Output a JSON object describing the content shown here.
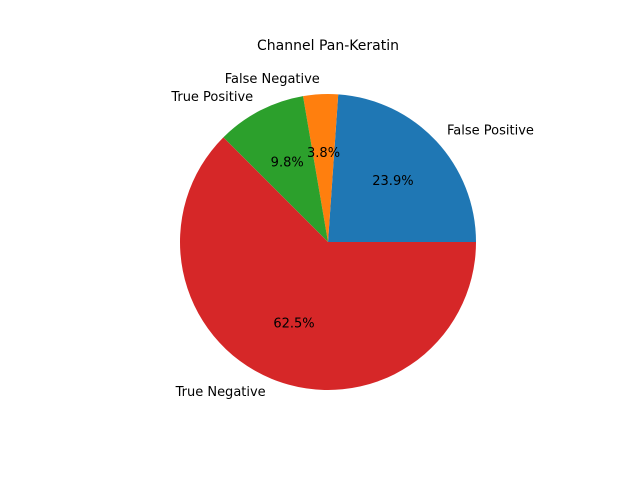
{
  "chart_data": {
    "type": "pie",
    "title": "Channel Pan-Keratin",
    "slices": [
      {
        "label": "False Positive",
        "value": 23.9,
        "pct_label": "23.9%",
        "color": "#1f77b4"
      },
      {
        "label": "False Negative",
        "value": 3.8,
        "pct_label": "3.8%",
        "color": "#ff7f0e"
      },
      {
        "label": "True Positive",
        "value": 9.8,
        "pct_label": "9.8%",
        "color": "#2ca02c"
      },
      {
        "label": "True Negative",
        "value": 62.5,
        "pct_label": "62.5%",
        "color": "#d62728"
      }
    ],
    "start_angle_deg": 0,
    "direction": "counterclockwise",
    "legend": "none"
  }
}
